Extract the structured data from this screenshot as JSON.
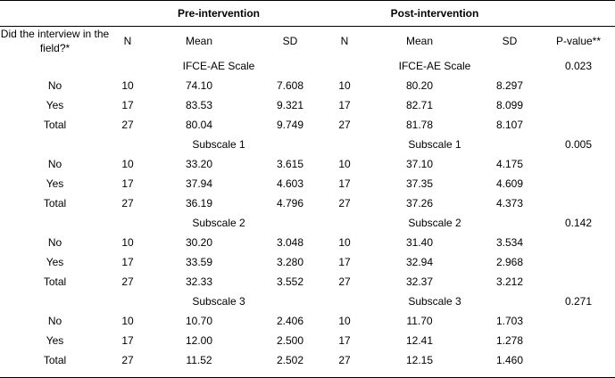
{
  "group_headers": {
    "pre": "Pre-intervention",
    "post": "Post-intervention"
  },
  "columns": {
    "question": "Did the interview in the field?*",
    "n_pre": "N",
    "mean_pre": "Mean",
    "sd_pre": "SD",
    "n_post": "N",
    "mean_post": "Mean",
    "sd_post": "SD",
    "pvalue": "P-value**"
  },
  "sections": [
    {
      "pre_label": "IFCE-AE Scale",
      "post_label": "IFCE-AE Scale",
      "pvalue": "0.023",
      "rows": [
        {
          "label": "No",
          "n_pre": "10",
          "mean_pre": "74.10",
          "sd_pre": "7.608",
          "n_post": "10",
          "mean_post": "80.20",
          "sd_post": "8.297"
        },
        {
          "label": "Yes",
          "n_pre": "17",
          "mean_pre": "83.53",
          "sd_pre": "9.321",
          "n_post": "17",
          "mean_post": "82.71",
          "sd_post": "8.099"
        },
        {
          "label": "Total",
          "n_pre": "27",
          "mean_pre": "80.04",
          "sd_pre": "9.749",
          "n_post": "27",
          "mean_post": "81.78",
          "sd_post": "8.107"
        }
      ]
    },
    {
      "pre_label": "Subscale 1",
      "post_label": "Subscale 1",
      "pvalue": "0.005",
      "rows": [
        {
          "label": "No",
          "n_pre": "10",
          "mean_pre": "33.20",
          "sd_pre": "3.615",
          "n_post": "10",
          "mean_post": "37.10",
          "sd_post": "4.175"
        },
        {
          "label": "Yes",
          "n_pre": "17",
          "mean_pre": "37.94",
          "sd_pre": "4.603",
          "n_post": "17",
          "mean_post": "37.35",
          "sd_post": "4.609"
        },
        {
          "label": "Total",
          "n_pre": "27",
          "mean_pre": "36.19",
          "sd_pre": "4.796",
          "n_post": "27",
          "mean_post": "37.26",
          "sd_post": "4.373"
        }
      ]
    },
    {
      "pre_label": "Subscale 2",
      "post_label": "Subscale 2",
      "pvalue": "0.142",
      "rows": [
        {
          "label": "No",
          "n_pre": "10",
          "mean_pre": "30.20",
          "sd_pre": "3.048",
          "n_post": "10",
          "mean_post": "31.40",
          "sd_post": "3.534"
        },
        {
          "label": "Yes",
          "n_pre": "17",
          "mean_pre": "33.59",
          "sd_pre": "3.280",
          "n_post": "17",
          "mean_post": "32.94",
          "sd_post": "2.968"
        },
        {
          "label": "Total",
          "n_pre": "27",
          "mean_pre": "32.33",
          "sd_pre": "3.552",
          "n_post": "27",
          "mean_post": "32.37",
          "sd_post": "3.212"
        }
      ]
    },
    {
      "pre_label": "Subscale 3",
      "post_label": "Subscale 3",
      "pvalue": "0.271",
      "rows": [
        {
          "label": "No",
          "n_pre": "10",
          "mean_pre": "10.70",
          "sd_pre": "2.406",
          "n_post": "10",
          "mean_post": "11.70",
          "sd_post": "1.703"
        },
        {
          "label": "Yes",
          "n_pre": "17",
          "mean_pre": "12.00",
          "sd_pre": "2.500",
          "n_post": "17",
          "mean_post": "12.41",
          "sd_post": "1.278"
        },
        {
          "label": "Total",
          "n_pre": "27",
          "mean_pre": "11.52",
          "sd_pre": "2.502",
          "n_post": "27",
          "mean_post": "12.15",
          "sd_post": "1.460"
        }
      ]
    }
  ]
}
